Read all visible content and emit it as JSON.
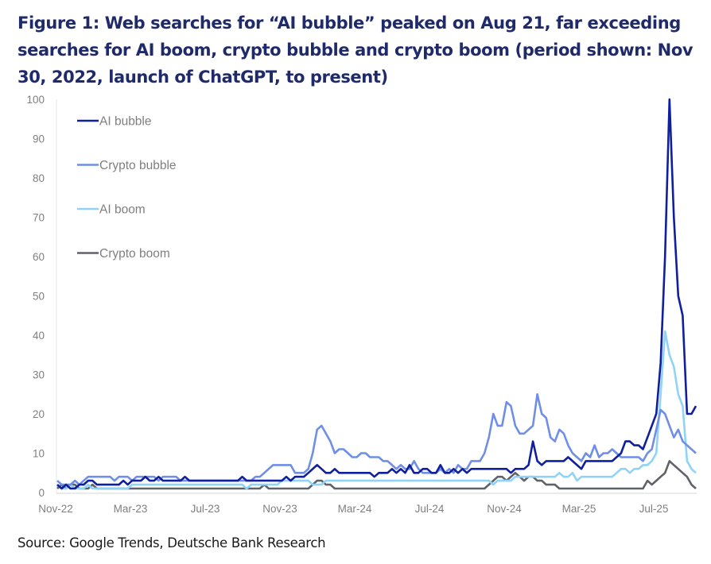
{
  "title": "Figure 1: Web searches for “AI bubble” peaked on Aug 21, far exceeding searches for AI boom, crypto bubble and crypto boom (period shown: Nov 30, 2022, launch of ChatGPT, to present)",
  "source": "Source: Google Trends, Deutsche Bank Research",
  "chart_data": {
    "type": "line",
    "title": "Figure 1: Web searches for “AI bubble” peaked on Aug 21, far exceeding searches for AI boom, crypto bubble and crypto boom (period shown: Nov 30, 2022, launch of ChatGPT, to present)",
    "xlabel": "",
    "ylabel": "",
    "ylim": [
      0,
      100
    ],
    "yticks": [
      0,
      10,
      20,
      30,
      40,
      50,
      60,
      70,
      80,
      90,
      100
    ],
    "xtick_labels": [
      "Nov-22",
      "Mar-23",
      "Jul-23",
      "Nov-23",
      "Mar-24",
      "Jul-24",
      "Nov-24",
      "Mar-25",
      "Jul-25"
    ],
    "x_unit": "weeks since Nov 30, 2022",
    "grid": false,
    "legend_position": "top-left",
    "colors": {
      "AI bubble": "#0f1f9e",
      "Crypto bubble": "#6f8fe6",
      "AI boom": "#8fd3f7",
      "Crypto boom": "#5f6268"
    },
    "series": [
      {
        "name": "AI bubble",
        "values": [
          2,
          1,
          2,
          1,
          1,
          2,
          2,
          3,
          3,
          2,
          2,
          2,
          2,
          2,
          2,
          3,
          2,
          3,
          3,
          3,
          4,
          3,
          3,
          4,
          3,
          3,
          3,
          3,
          3,
          4,
          3,
          3,
          3,
          3,
          3,
          3,
          3,
          3,
          3,
          3,
          3,
          3,
          4,
          3,
          3,
          3,
          3,
          3,
          3,
          3,
          3,
          3,
          4,
          3,
          4,
          4,
          4,
          5,
          6,
          7,
          6,
          5,
          5,
          6,
          5,
          5,
          5,
          5,
          5,
          5,
          5,
          5,
          4,
          5,
          5,
          5,
          6,
          5,
          6,
          5,
          7,
          5,
          5,
          6,
          6,
          5,
          5,
          7,
          5,
          5,
          6,
          5,
          6,
          5,
          6,
          6,
          6,
          6,
          6,
          6,
          6,
          6,
          6,
          5,
          6,
          6,
          6,
          7,
          13,
          8,
          7,
          8,
          8,
          8,
          8,
          8,
          9,
          8,
          7,
          6,
          8,
          8,
          8,
          8,
          8,
          8,
          8,
          9,
          10,
          13,
          13,
          12,
          12,
          11,
          14,
          17,
          20,
          33,
          60,
          100,
          70,
          50,
          45,
          20,
          20,
          22
        ]
      },
      {
        "name": "Crypto bubble",
        "values": [
          3,
          2,
          2,
          2,
          3,
          2,
          3,
          4,
          4,
          4,
          4,
          4,
          4,
          3,
          4,
          4,
          4,
          3,
          4,
          4,
          4,
          4,
          4,
          3,
          4,
          4,
          4,
          4,
          3,
          3,
          3,
          3,
          3,
          3,
          3,
          3,
          3,
          3,
          3,
          3,
          3,
          3,
          3,
          3,
          3,
          4,
          4,
          5,
          6,
          7,
          7,
          7,
          7,
          7,
          5,
          5,
          5,
          6,
          10,
          16,
          17,
          15,
          13,
          10,
          11,
          11,
          10,
          9,
          9,
          10,
          10,
          9,
          9,
          9,
          8,
          8,
          7,
          6,
          7,
          6,
          6,
          8,
          6,
          5,
          5,
          5,
          5,
          6,
          5,
          6,
          5,
          7,
          6,
          6,
          8,
          8,
          8,
          10,
          14,
          20,
          17,
          17,
          23,
          22,
          17,
          15,
          15,
          16,
          17,
          25,
          20,
          19,
          14,
          13,
          16,
          15,
          12,
          10,
          9,
          8,
          10,
          9,
          12,
          9,
          10,
          10,
          11,
          10,
          9,
          9,
          9,
          9,
          9,
          8,
          10,
          11,
          16,
          21,
          20,
          17,
          14,
          16,
          13,
          12,
          11,
          10
        ]
      },
      {
        "name": "AI boom",
        "values": [
          2,
          1,
          1,
          2,
          1,
          1,
          1,
          2,
          1,
          1,
          1,
          1,
          1,
          1,
          1,
          1,
          1,
          2,
          2,
          2,
          2,
          2,
          2,
          2,
          2,
          2,
          2,
          2,
          2,
          2,
          2,
          2,
          2,
          2,
          2,
          2,
          2,
          2,
          2,
          2,
          2,
          2,
          2,
          1,
          2,
          2,
          2,
          2,
          2,
          2,
          2,
          3,
          3,
          3,
          3,
          3,
          3,
          3,
          2,
          2,
          2,
          3,
          3,
          3,
          3,
          3,
          3,
          3,
          3,
          3,
          3,
          3,
          3,
          3,
          3,
          3,
          3,
          3,
          3,
          3,
          3,
          3,
          3,
          3,
          3,
          3,
          3,
          3,
          3,
          3,
          3,
          3,
          3,
          3,
          3,
          3,
          3,
          3,
          3,
          2,
          3,
          3,
          3,
          3,
          4,
          4,
          4,
          4,
          4,
          4,
          4,
          4,
          4,
          4,
          5,
          4,
          4,
          5,
          3,
          4,
          4,
          4,
          4,
          4,
          4,
          4,
          4,
          5,
          6,
          6,
          5,
          6,
          6,
          7,
          7,
          8,
          10,
          25,
          41,
          35,
          32,
          25,
          22,
          8,
          6,
          5
        ]
      },
      {
        "name": "Crypto boom",
        "values": [
          1,
          2,
          1,
          2,
          2,
          1,
          1,
          1,
          2,
          1,
          1,
          1,
          1,
          1,
          1,
          1,
          1,
          1,
          1,
          1,
          1,
          1,
          1,
          1,
          1,
          1,
          1,
          1,
          1,
          1,
          1,
          1,
          1,
          1,
          1,
          1,
          1,
          1,
          1,
          1,
          1,
          1,
          1,
          1,
          1,
          1,
          1,
          2,
          1,
          1,
          1,
          1,
          1,
          1,
          1,
          1,
          1,
          1,
          2,
          3,
          3,
          2,
          2,
          1,
          1,
          1,
          1,
          1,
          1,
          1,
          1,
          1,
          1,
          1,
          1,
          1,
          1,
          1,
          1,
          1,
          1,
          1,
          1,
          1,
          1,
          1,
          1,
          1,
          1,
          1,
          1,
          1,
          1,
          1,
          1,
          1,
          1,
          1,
          2,
          3,
          4,
          4,
          3,
          4,
          5,
          4,
          3,
          4,
          4,
          3,
          3,
          2,
          2,
          2,
          1,
          1,
          1,
          1,
          1,
          1,
          1,
          1,
          1,
          1,
          1,
          1,
          1,
          1,
          1,
          1,
          1,
          1,
          1,
          1,
          3,
          2,
          3,
          4,
          5,
          8,
          7,
          6,
          5,
          4,
          2,
          1
        ]
      }
    ]
  }
}
